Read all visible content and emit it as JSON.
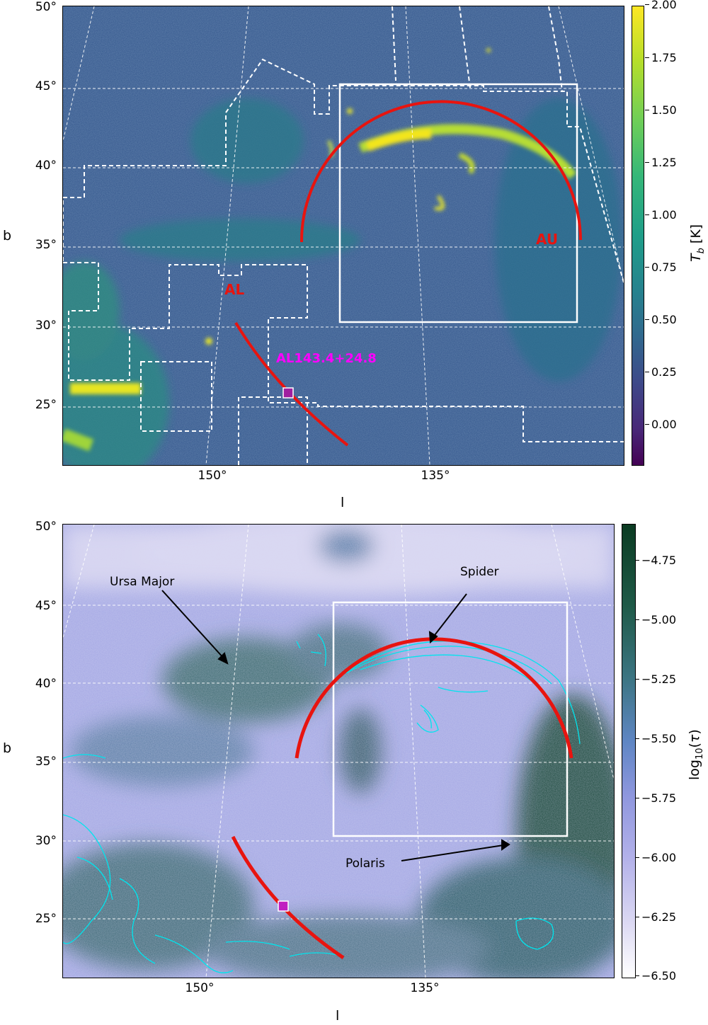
{
  "top_panel": {
    "y_ticks": [
      "50°",
      "45°",
      "40°",
      "35°",
      "30°",
      "25°"
    ],
    "x_ticks": [
      "150°",
      "135°"
    ],
    "xlabel": "l",
    "ylabel": "b",
    "colorbar": {
      "label": "T_b [K]",
      "ticks": [
        "2.00",
        "1.75",
        "1.50",
        "1.25",
        "1.00",
        "0.75",
        "0.50",
        "0.25",
        "0.00"
      ],
      "colormap": [
        "#440154",
        "#3b528b",
        "#21918c",
        "#5ec962",
        "#fde725"
      ]
    },
    "annotations": {
      "au": "AU",
      "al": "AL",
      "source": "AL143.4+24.8"
    },
    "colors": {
      "arc": "#e8140f",
      "source_label": "#ff00ff",
      "marker": "#a020a0"
    }
  },
  "bottom_panel": {
    "y_ticks": [
      "50°",
      "45°",
      "40°",
      "35°",
      "30°",
      "25°"
    ],
    "x_ticks": [
      "150°",
      "135°"
    ],
    "xlabel": "l",
    "ylabel": "b",
    "colorbar": {
      "label": "log10(τ)",
      "ticks": [
        "−4.75",
        "−5.00",
        "−5.25",
        "−5.50",
        "−5.75",
        "−6.00",
        "−6.25",
        "−6.50"
      ],
      "colormap": [
        "#ffffff",
        "#c9c4ec",
        "#8f97de",
        "#4f82a5",
        "#1f5a48",
        "#0b3b22"
      ]
    },
    "annotations": {
      "ursa_major": "Ursa Major",
      "spider": "Spider",
      "polaris": "Polaris"
    },
    "colors": {
      "arc": "#e8140f",
      "contour": "#00e5ee",
      "marker": "#c020c0"
    }
  }
}
